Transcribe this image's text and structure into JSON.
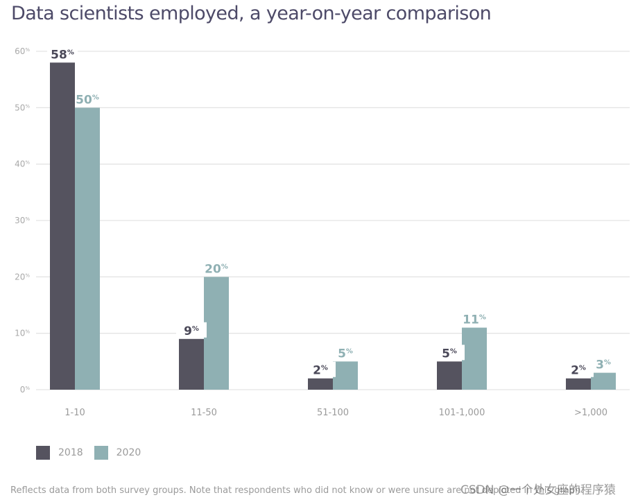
{
  "chart_data": {
    "type": "bar",
    "title": "Data scientists employed, a year-on-year comparison",
    "xlabel": "",
    "ylabel": "",
    "categories": [
      "1-10",
      "11-50",
      "51-100",
      "101-1,000",
      ">1,000"
    ],
    "series": [
      {
        "name": "2018",
        "color": "#55535f",
        "label_color": "#4a4858",
        "values": [
          58,
          9,
          2,
          5,
          2
        ]
      },
      {
        "name": "2020",
        "color": "#8fb0b3",
        "label_color": "#8fb0b3",
        "values": [
          50,
          20,
          5,
          11,
          3
        ]
      }
    ],
    "ylim": [
      0,
      60
    ],
    "yticks": [
      0,
      10,
      20,
      30,
      40,
      50,
      60
    ],
    "ytick_suffix": "%",
    "value_suffix": "%",
    "grid": true,
    "legend_position": "bottom-left"
  },
  "footnote": "Reflects data from both survey groups. Note that respondents who did not know or were unsure are not depicted in this graph.",
  "watermark": "CSDN @一个处女座的程序猿"
}
